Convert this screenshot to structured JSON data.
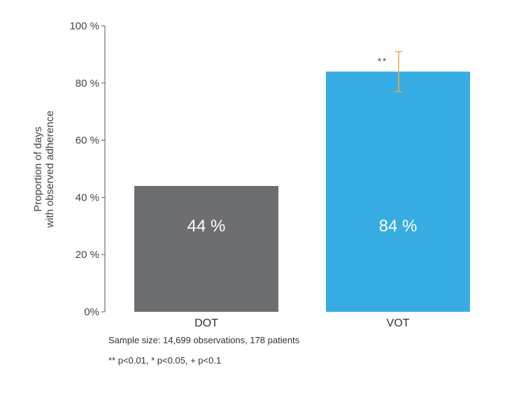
{
  "chart_data": {
    "type": "bar",
    "title": "",
    "xlabel": "",
    "ylabel": [
      "Proportion of days",
      "with observed adherence"
    ],
    "ylim": [
      0,
      100
    ],
    "yticks": [
      0,
      20,
      40,
      60,
      80,
      100
    ],
    "ytick_labels": [
      "0%",
      "20 %",
      "40 %",
      "60 %",
      "80 %",
      "100 %"
    ],
    "categories": [
      "DOT",
      "VOT"
    ],
    "values": [
      44,
      84
    ],
    "data_labels": [
      "44 %",
      "84 %"
    ],
    "colors": [
      "#6d6e71",
      "#36ace2"
    ],
    "error_bars": [
      null,
      {
        "low": 77,
        "high": 91
      }
    ],
    "error_bar_color": "#f5a93a",
    "significance": [
      null,
      "**"
    ],
    "grid": false
  },
  "notes": {
    "sample_size": "Sample size: 14,699 observations, 178 patients",
    "significance_key": "** p<0.01, * p<0.05, + p<0.1"
  }
}
